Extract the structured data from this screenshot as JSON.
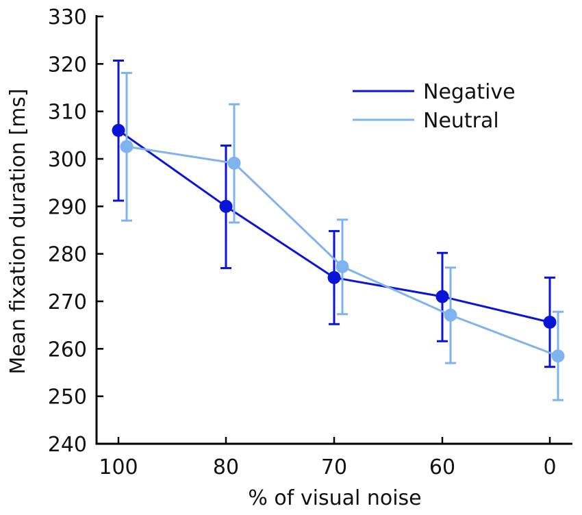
{
  "chart_data": {
    "type": "line",
    "title": "",
    "xlabel": "% of visual noise",
    "ylabel": "Mean fixation duration [ms]",
    "categories": [
      "100",
      "80",
      "70",
      "60",
      "0"
    ],
    "ylim": [
      240,
      330
    ],
    "yticks": [
      "240",
      "250",
      "260",
      "270",
      "280",
      "290",
      "300",
      "310",
      "320",
      "330"
    ],
    "legend_position": "top-right",
    "series": [
      {
        "name": "Negative",
        "color": "#0a14d8",
        "values": [
          306.0,
          290.0,
          275.0,
          271.0,
          265.6
        ],
        "err_low": [
          291.2,
          277.0,
          265.2,
          261.6,
          256.2
        ],
        "err_high": [
          320.7,
          302.8,
          284.8,
          280.2,
          275.0
        ]
      },
      {
        "name": "Neutral",
        "color": "#7fb3f0",
        "values": [
          302.6,
          299.1,
          277.3,
          267.1,
          258.5
        ],
        "err_low": [
          287.0,
          286.6,
          267.3,
          257.0,
          249.2
        ],
        "err_high": [
          318.1,
          311.5,
          287.2,
          277.1,
          267.8
        ]
      }
    ]
  }
}
